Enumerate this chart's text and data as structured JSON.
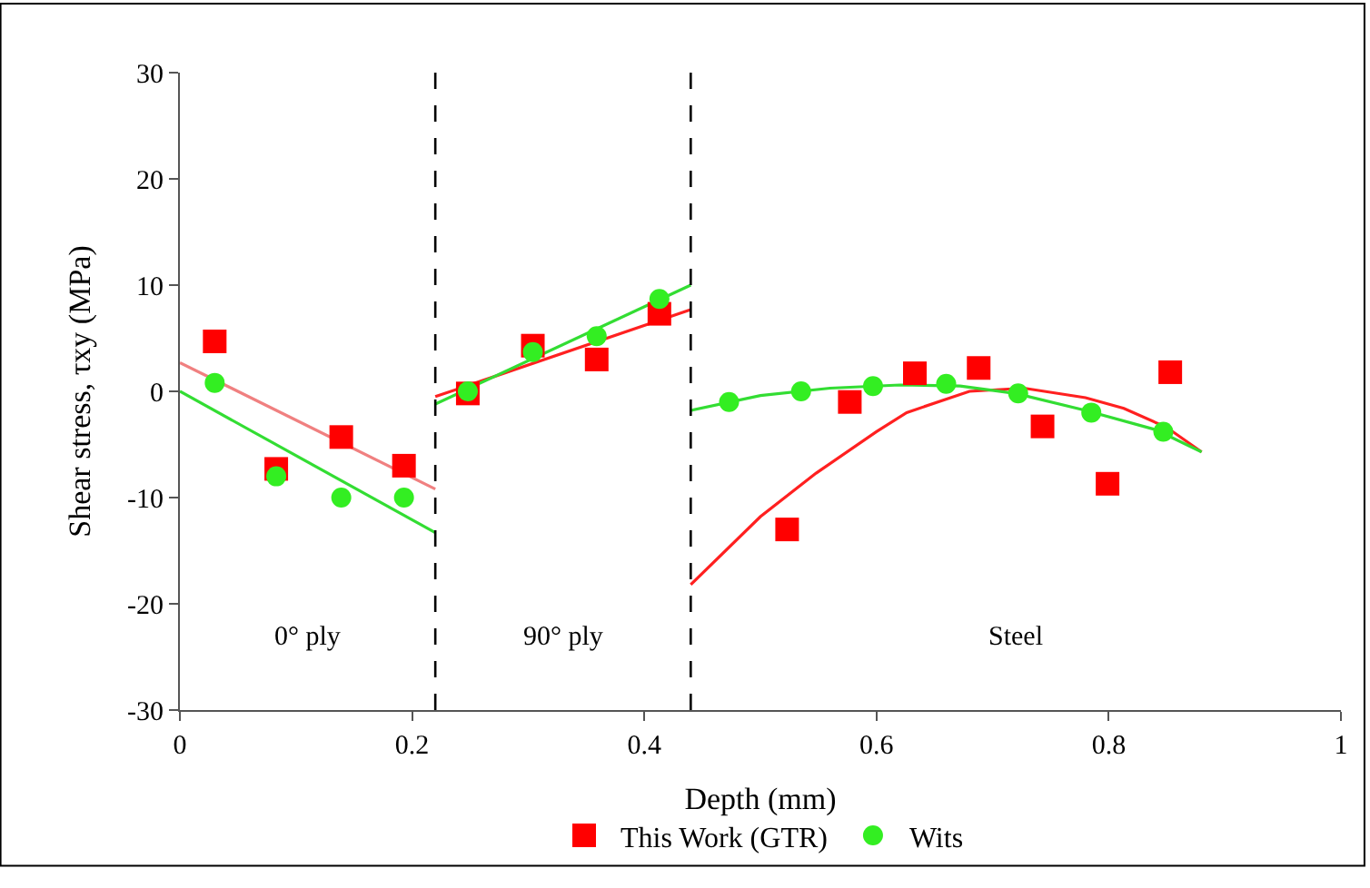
{
  "chart_data": {
    "type": "scatter",
    "xlabel": "Depth (mm)",
    "ylabel": "Shear stress, τxy (MPa)",
    "xlim": [
      0,
      1
    ],
    "xticks": [
      0,
      0.2,
      0.4,
      0.6,
      0.8,
      1
    ],
    "ylim": [
      -30,
      30
    ],
    "yticks": [
      -30,
      -20,
      -10,
      0,
      10,
      20,
      30
    ],
    "legend": "bottom",
    "series": [
      {
        "type": "line",
        "color": "#f08080",
        "x": [
          0,
          0.22
        ],
        "values": [
          2.7,
          -9.2
        ],
        "marker": "none"
      },
      {
        "type": "line",
        "color": "#33dd33",
        "x": [
          0,
          0.22
        ],
        "values": [
          0,
          -13.3
        ],
        "marker": "none"
      },
      {
        "type": "line",
        "color": "#ff2020",
        "x": [
          0.22,
          0.44
        ],
        "values": [
          -0.5,
          7.7
        ],
        "marker": "none"
      },
      {
        "type": "line",
        "color": "#33dd33",
        "x": [
          0.22,
          0.44
        ],
        "values": [
          -1.2,
          10
        ],
        "marker": "none"
      },
      {
        "type": "line",
        "color": "#ff2020",
        "x": [
          0.44,
          0.5,
          0.548,
          0.6,
          0.626,
          0.68,
          0.727,
          0.78,
          0.813,
          0.85,
          0.88
        ],
        "values": [
          -18.2,
          -11.8,
          -7.7,
          -3.8,
          -2,
          0,
          0.3,
          -0.6,
          -1.6,
          -3.4,
          -5.7
        ],
        "marker": "none"
      },
      {
        "type": "line",
        "color": "#33dd33",
        "x": [
          0.44,
          0.5,
          0.56,
          0.62,
          0.672,
          0.72,
          0.78,
          0.84,
          0.88
        ],
        "values": [
          -1.8,
          -0.4,
          0.3,
          0.6,
          0.5,
          -0.2,
          -1.8,
          -3.6,
          -5.7
        ],
        "marker": "none"
      },
      {
        "name": "This Work (GTR)",
        "color": "#ff0000",
        "marker": "square",
        "x": [
          0.03,
          0.083,
          0.139,
          0.193,
          0.248,
          0.304,
          0.359,
          0.413,
          0.523,
          0.577,
          0.633,
          0.688,
          0.743,
          0.799,
          0.853
        ],
        "values": [
          4.7,
          -7.3,
          -4.3,
          -7,
          -0.2,
          4.3,
          3,
          7.3,
          -13,
          -1,
          1.7,
          2.2,
          -3.3,
          -8.7,
          1.8
        ]
      },
      {
        "name": "Wits",
        "color": "#33ee22",
        "marker": "circle",
        "x": [
          0.03,
          0.083,
          0.139,
          0.193,
          0.248,
          0.304,
          0.359,
          0.413,
          0.473,
          0.535,
          0.597,
          0.66,
          0.722,
          0.785,
          0.847
        ],
        "values": [
          0.8,
          -8,
          -10,
          -10,
          0,
          3.7,
          5.2,
          8.7,
          -1,
          0,
          0.5,
          0.7,
          -0.2,
          -2,
          -3.8
        ]
      }
    ],
    "ref_lines": [
      {
        "axis": "x",
        "value": 0.22,
        "color": "#000000",
        "line_style": "dashed"
      },
      {
        "axis": "x",
        "value": 0.44,
        "color": "#000000",
        "line_style": "dashed"
      }
    ],
    "annotations": [
      "0° ply",
      "90° ply",
      "Steel"
    ]
  }
}
